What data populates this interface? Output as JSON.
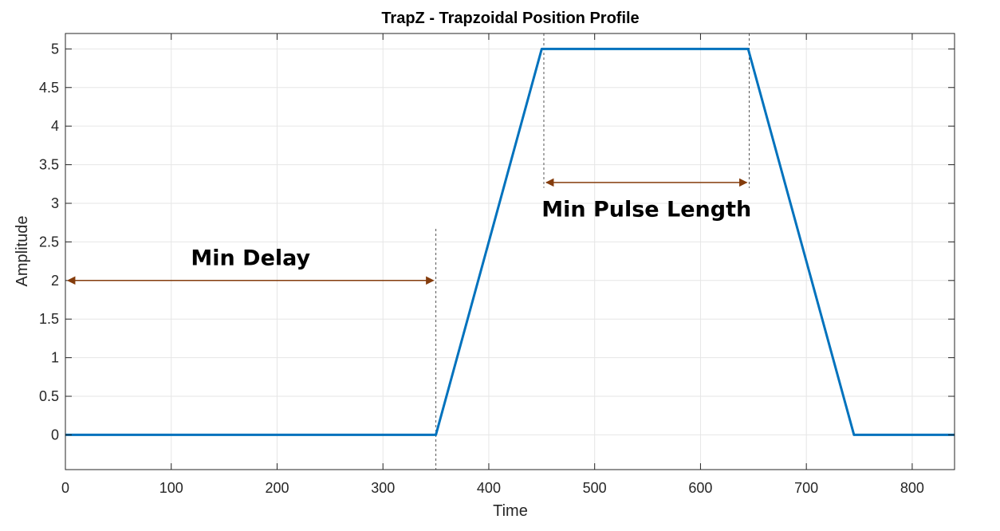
{
  "chart_data": {
    "type": "line",
    "title": "TrapZ - Trapzoidal Position Profile",
    "xlabel": "Time",
    "ylabel": "Amplitude",
    "xlim": [
      0,
      840
    ],
    "ylim": [
      -0.45,
      5.2
    ],
    "grid": true,
    "xticks": [
      0,
      100,
      200,
      300,
      400,
      500,
      600,
      700,
      800
    ],
    "yticks": [
      0,
      0.5,
      1,
      1.5,
      2,
      2.5,
      3,
      3.5,
      4,
      4.5,
      5
    ],
    "ytick_labels": [
      "0",
      "0.5",
      "1",
      "1.5",
      "2",
      "2.5",
      "3",
      "3.5",
      "4",
      "4.5",
      "5"
    ],
    "series": [
      {
        "color": "#0072BD",
        "x": [
          0,
          350,
          450,
          645,
          745,
          840
        ],
        "y": [
          0,
          0,
          5,
          5,
          0,
          0
        ]
      }
    ],
    "annotations": [
      {
        "label": "Min Delay",
        "from": 0,
        "to": 350,
        "y": 2.0,
        "label_x": 175,
        "label_y": 2.2
      },
      {
        "label": "Min Pulse Length",
        "from": 452,
        "to": 646,
        "y": 3.27,
        "label_x": 549,
        "label_y": 2.83
      }
    ],
    "guide_lines": [
      {
        "x": 350,
        "y_from": 2.67,
        "y_to": -0.45
      },
      {
        "x": 452,
        "y_from": 5.2,
        "y_to": 3.2
      },
      {
        "x": 646,
        "y_from": 5.2,
        "y_to": 3.2
      }
    ],
    "arrow_color": "#843C0C"
  }
}
